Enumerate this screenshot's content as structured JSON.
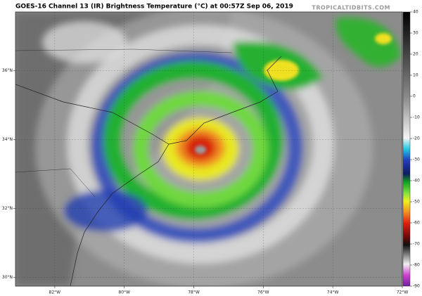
{
  "header": {
    "title": "GOES-16 Channel 13 (IR) Brightness Temperature (°C) at 00:57Z Sep 06, 2019",
    "watermark": "TROPICALTIDBITS.COM"
  },
  "map": {
    "xlim": [
      -83.13,
      -72
    ],
    "ylim": [
      29.75,
      37.7
    ],
    "lat_labels": [
      {
        "value": 36,
        "label": "36°N"
      },
      {
        "value": 34,
        "label": "34°N"
      },
      {
        "value": 32,
        "label": "32°N"
      },
      {
        "value": 30,
        "label": "30°N"
      }
    ],
    "lon_labels": [
      {
        "value": -82,
        "label": "82°W"
      },
      {
        "value": -80,
        "label": "80°W"
      },
      {
        "value": -78,
        "label": "78°W"
      },
      {
        "value": -76,
        "label": "76°W"
      },
      {
        "value": -74,
        "label": "74°W"
      },
      {
        "value": -72,
        "label": "72°W"
      }
    ]
  },
  "colorbar": {
    "lim": [
      40,
      -90
    ],
    "ticks": [
      40,
      30,
      20,
      10,
      0,
      -10,
      -20,
      -30,
      -40,
      -50,
      -60,
      -70,
      -80,
      -90
    ]
  }
}
